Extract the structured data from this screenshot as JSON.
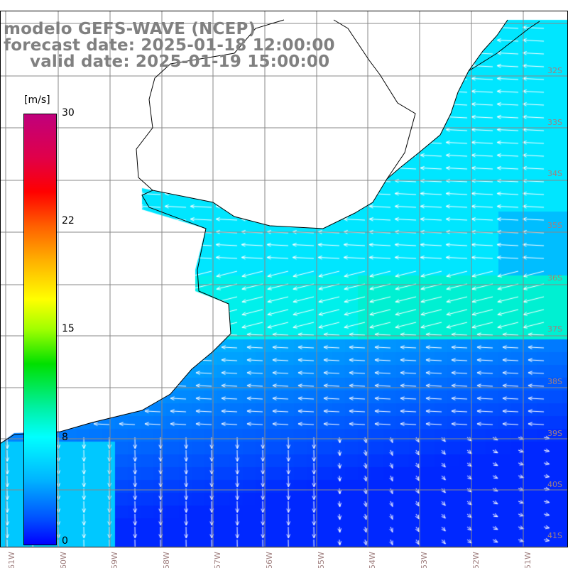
{
  "title": {
    "model": "modelo GEFS-WAVE (NCEP)",
    "forecast": "forecast date: 2025-01-18 12:00:00",
    "valid": "valid date: 2025-01-19 15:00:00"
  },
  "colorbar": {
    "unit": "[m/s]",
    "ticks": [
      "30",
      "22",
      "15",
      "8",
      "0"
    ],
    "colors": {
      "max": "#c0007c",
      "mid": "#ffff00",
      "low": "#00ffff",
      "min": "#0000ff"
    }
  },
  "lat_labels": [
    "32S",
    "33S",
    "34S",
    "35S",
    "36S",
    "37S",
    "38S",
    "39S",
    "40S",
    "41S"
  ],
  "lon_labels": [
    "61W",
    "60W",
    "59W",
    "58W",
    "57W",
    "56W",
    "55W",
    "54W",
    "53W",
    "52W",
    "51W"
  ]
}
